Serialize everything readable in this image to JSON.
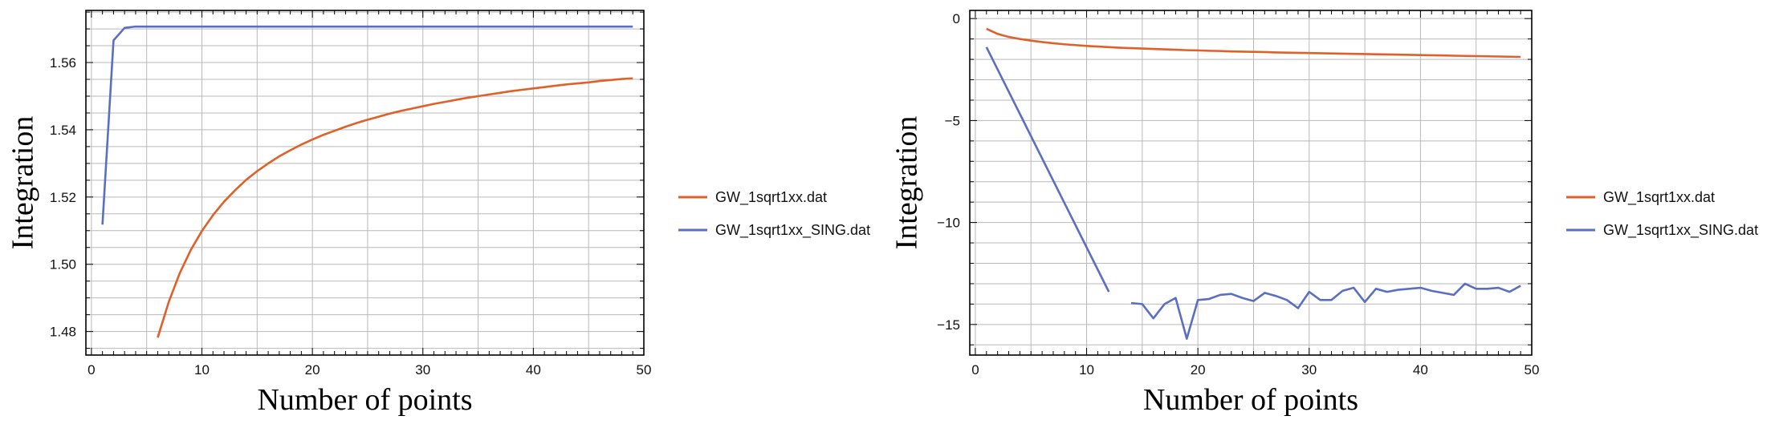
{
  "colors": {
    "orange": "#e0602a",
    "blue": "#5a6fc3",
    "grid": "#b9b9b9",
    "frame": "#000000"
  },
  "chart_data": [
    {
      "type": "line",
      "xlabel": "Number of points",
      "ylabel": "Integration",
      "xlim": [
        -0.5,
        50
      ],
      "ylim": [
        1.473,
        1.5755
      ],
      "xticks": [
        0,
        10,
        20,
        30,
        40,
        50
      ],
      "xtick_labels": [
        "0",
        "10",
        "20",
        "30",
        "40",
        "50"
      ],
      "yticks": [
        1.48,
        1.5,
        1.52,
        1.54,
        1.56
      ],
      "ytick_labels": [
        "1.48",
        "1.50",
        "1.52",
        "1.54",
        "1.56"
      ],
      "grid": true,
      "legend": "right",
      "series": [
        {
          "name": "GW_1sqrt1xx.dat",
          "color": "#e0602a",
          "x": [
            6,
            7,
            8,
            9,
            10,
            11,
            12,
            13,
            14,
            15,
            16,
            17,
            18,
            19,
            20,
            21,
            22,
            23,
            24,
            25,
            26,
            27,
            28,
            29,
            30,
            31,
            32,
            33,
            34,
            35,
            36,
            37,
            38,
            39,
            40,
            41,
            42,
            43,
            44,
            45,
            46,
            47,
            48,
            49
          ],
          "y": [
            1.4782,
            1.4888,
            1.4974,
            1.5043,
            1.5099,
            1.5146,
            1.5186,
            1.522,
            1.5251,
            1.5277,
            1.53,
            1.5321,
            1.5339,
            1.5356,
            1.5371,
            1.5385,
            1.5397,
            1.5409,
            1.542,
            1.543,
            1.5439,
            1.5448,
            1.5456,
            1.5463,
            1.547,
            1.5477,
            1.5483,
            1.5489,
            1.5495,
            1.55,
            1.5505,
            1.551,
            1.5515,
            1.5519,
            1.5523,
            1.5527,
            1.5531,
            1.5535,
            1.5538,
            1.5541,
            1.5545,
            1.5548,
            1.5551,
            1.5553
          ]
        },
        {
          "name": "GW_1sqrt1xx_SING.dat",
          "color": "#5a6fc3",
          "x": [
            1,
            2,
            3,
            4,
            5,
            6,
            7,
            8,
            9,
            10,
            11,
            12,
            13,
            14,
            15,
            16,
            17,
            18,
            19,
            20,
            21,
            22,
            23,
            24,
            25,
            26,
            27,
            28,
            29,
            30,
            31,
            32,
            33,
            34,
            35,
            36,
            37,
            38,
            39,
            40,
            41,
            42,
            43,
            44,
            45,
            46,
            47,
            48,
            49
          ],
          "y": [
            1.5118,
            1.5666,
            1.5703,
            1.5707,
            1.5707,
            1.5707,
            1.5707,
            1.5707,
            1.5707,
            1.5707,
            1.5707,
            1.5707,
            1.5707,
            1.5707,
            1.5707,
            1.5707,
            1.5707,
            1.5707,
            1.5707,
            1.5707,
            1.5707,
            1.5707,
            1.5707,
            1.5707,
            1.5707,
            1.5707,
            1.5707,
            1.5707,
            1.5707,
            1.5707,
            1.5707,
            1.5707,
            1.5707,
            1.5707,
            1.5707,
            1.5707,
            1.5707,
            1.5707,
            1.5707,
            1.5707,
            1.5707,
            1.5707,
            1.5707,
            1.5707,
            1.5707,
            1.5707,
            1.5707,
            1.5707,
            1.5707
          ]
        }
      ]
    },
    {
      "type": "line",
      "xlabel": "Number of points",
      "ylabel": "Integration",
      "xlim": [
        -0.5,
        50
      ],
      "ylim": [
        -16.5,
        0.4
      ],
      "xticks": [
        0,
        10,
        20,
        30,
        40,
        50
      ],
      "xtick_labels": [
        "0",
        "10",
        "20",
        "30",
        "40",
        "50"
      ],
      "yticks": [
        0,
        -5,
        -10,
        -15
      ],
      "ytick_labels": [
        "0",
        "−5",
        "−10",
        "−15"
      ],
      "grid": true,
      "legend": "right",
      "series": [
        {
          "name": "GW_1sqrt1xx.dat",
          "color": "#e0602a",
          "x": [
            1,
            2,
            3,
            4,
            5,
            6,
            7,
            8,
            9,
            10,
            11,
            12,
            13,
            14,
            15,
            16,
            17,
            18,
            19,
            20,
            21,
            22,
            23,
            24,
            25,
            26,
            27,
            28,
            29,
            30,
            31,
            32,
            33,
            34,
            35,
            36,
            37,
            38,
            39,
            40,
            41,
            42,
            43,
            44,
            45,
            46,
            47,
            48,
            49
          ],
          "y": [
            -0.5,
            -0.75,
            -0.9,
            -1.0,
            -1.08,
            -1.15,
            -1.21,
            -1.26,
            -1.3,
            -1.34,
            -1.37,
            -1.4,
            -1.43,
            -1.45,
            -1.47,
            -1.49,
            -1.51,
            -1.53,
            -1.55,
            -1.56,
            -1.58,
            -1.59,
            -1.61,
            -1.62,
            -1.63,
            -1.64,
            -1.66,
            -1.67,
            -1.68,
            -1.69,
            -1.7,
            -1.71,
            -1.72,
            -1.73,
            -1.74,
            -1.75,
            -1.76,
            -1.77,
            -1.78,
            -1.79,
            -1.8,
            -1.81,
            -1.82,
            -1.83,
            -1.84,
            -1.85,
            -1.86,
            -1.87,
            -1.88
          ]
        },
        {
          "name": "GW_1sqrt1xx_SING.dat",
          "color": "#5a6fc3",
          "segments": [
            {
              "x": [
                1,
                12
              ],
              "y": [
                -1.4,
                -13.4
              ]
            },
            {
              "x": [
                14,
                15,
                16,
                17,
                18,
                19,
                20,
                21,
                22,
                23,
                24,
                25,
                26,
                27,
                28,
                29,
                30,
                31,
                32,
                33,
                34,
                35,
                36,
                37,
                38,
                39,
                40,
                41,
                42,
                43,
                44,
                45,
                46,
                47,
                48,
                49
              ],
              "y": [
                -13.95,
                -14.0,
                -14.7,
                -14.0,
                -13.7,
                -15.7,
                -13.8,
                -13.75,
                -13.55,
                -13.5,
                -13.7,
                -13.85,
                -13.45,
                -13.6,
                -13.8,
                -14.2,
                -13.4,
                -13.8,
                -13.8,
                -13.35,
                -13.2,
                -13.9,
                -13.25,
                -13.4,
                -13.3,
                -13.25,
                -13.2,
                -13.35,
                -13.45,
                -13.55,
                -13.0,
                -13.25,
                -13.25,
                -13.2,
                -13.4,
                -13.1
              ]
            }
          ]
        }
      ]
    }
  ]
}
